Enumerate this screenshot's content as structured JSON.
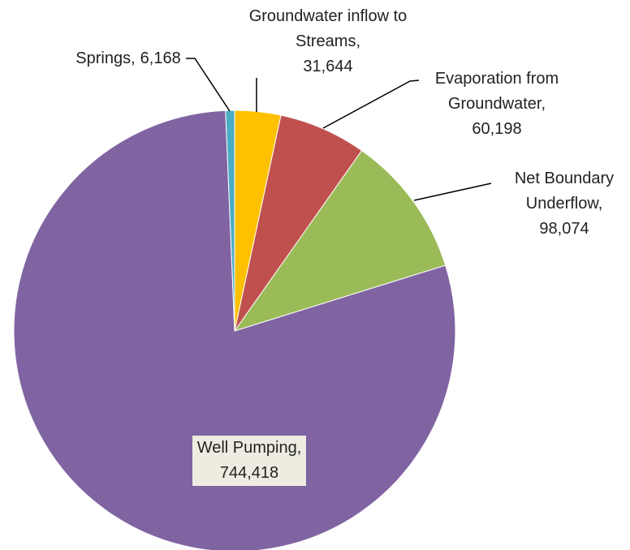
{
  "chart_data": {
    "type": "pie",
    "categories": [
      "Groundwater inflow to Streams",
      "Evaporation from Groundwater",
      "Net Boundary Underflow",
      "Well Pumping",
      "Springs"
    ],
    "values": [
      31644,
      60198,
      98074,
      744418,
      6168
    ],
    "value_labels": [
      "31,644",
      "60,198",
      "98,074",
      "744,418",
      "6,168"
    ],
    "colors": [
      "#ffc000",
      "#c0504d",
      "#9bbb59",
      "#8064a2",
      "#4bacc6"
    ],
    "label_separator": ","
  }
}
